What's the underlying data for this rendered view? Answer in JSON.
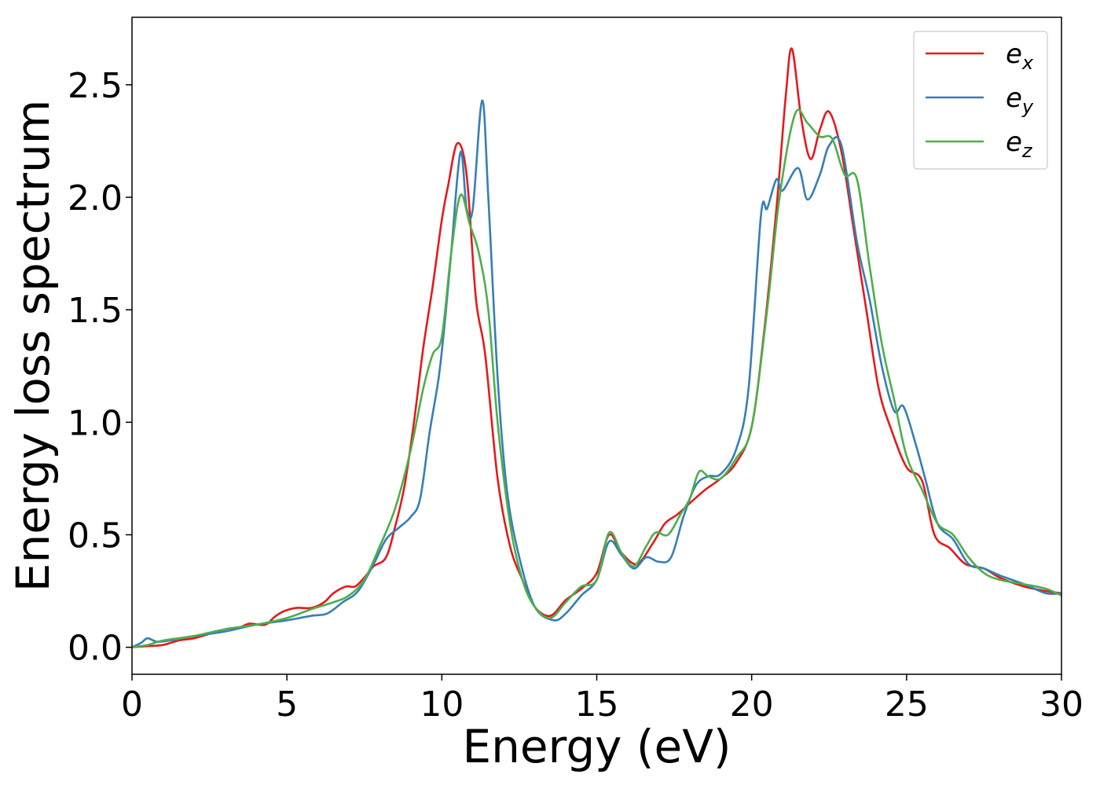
{
  "chart_data": {
    "type": "line",
    "title": "",
    "xlabel": "Energy (eV)",
    "ylabel": "Energy loss spectrum",
    "xlim": [
      0,
      30
    ],
    "ylim": [
      -0.12,
      2.8
    ],
    "grid": false,
    "legend_position": "top-right",
    "xticks": [
      0,
      5,
      10,
      15,
      20,
      25,
      30
    ],
    "xtick_labels": [
      "0",
      "5",
      "10",
      "15",
      "20",
      "25",
      "30"
    ],
    "yticks": [
      0.0,
      0.5,
      1.0,
      1.5,
      2.0,
      2.5
    ],
    "ytick_labels": [
      "0.0",
      "0.5",
      "1.0",
      "1.5",
      "2.0",
      "2.5"
    ],
    "series": [
      {
        "name": "e_x",
        "label_main": "e",
        "label_sub": "x",
        "color": "#e41a1c",
        "points": [
          [
            0,
            0.0
          ],
          [
            0.5,
            0.005
          ],
          [
            1,
            0.01
          ],
          [
            1.5,
            0.03
          ],
          [
            2,
            0.04
          ],
          [
            2.5,
            0.06
          ],
          [
            3,
            0.08
          ],
          [
            3.5,
            0.09
          ],
          [
            3.8,
            0.105
          ],
          [
            4.3,
            0.1
          ],
          [
            4.6,
            0.135
          ],
          [
            4.9,
            0.16
          ],
          [
            5.3,
            0.175
          ],
          [
            5.8,
            0.175
          ],
          [
            6.2,
            0.2
          ],
          [
            6.5,
            0.24
          ],
          [
            6.9,
            0.27
          ],
          [
            7.2,
            0.27
          ],
          [
            7.5,
            0.31
          ],
          [
            7.8,
            0.36
          ],
          [
            8.2,
            0.4
          ],
          [
            8.5,
            0.54
          ],
          [
            8.8,
            0.72
          ],
          [
            9.1,
            1.0
          ],
          [
            9.4,
            1.33
          ],
          [
            9.7,
            1.6
          ],
          [
            10.0,
            1.9
          ],
          [
            10.2,
            2.05
          ],
          [
            10.5,
            2.24
          ],
          [
            10.8,
            2.1
          ],
          [
            11.1,
            1.55
          ],
          [
            11.4,
            1.3
          ],
          [
            11.8,
            0.75
          ],
          [
            12.2,
            0.45
          ],
          [
            12.6,
            0.3
          ],
          [
            13.0,
            0.18
          ],
          [
            13.5,
            0.14
          ],
          [
            14.0,
            0.21
          ],
          [
            14.5,
            0.26
          ],
          [
            15.0,
            0.33
          ],
          [
            15.4,
            0.5
          ],
          [
            15.8,
            0.42
          ],
          [
            16.3,
            0.37
          ],
          [
            16.8,
            0.46
          ],
          [
            17.2,
            0.55
          ],
          [
            17.6,
            0.59
          ],
          [
            18.0,
            0.64
          ],
          [
            18.5,
            0.7
          ],
          [
            19.0,
            0.75
          ],
          [
            19.5,
            0.82
          ],
          [
            20.0,
            0.98
          ],
          [
            20.4,
            1.4
          ],
          [
            20.8,
            1.95
          ],
          [
            21.1,
            2.45
          ],
          [
            21.3,
            2.66
          ],
          [
            21.6,
            2.35
          ],
          [
            21.9,
            2.17
          ],
          [
            22.2,
            2.3
          ],
          [
            22.5,
            2.38
          ],
          [
            22.9,
            2.2
          ],
          [
            23.3,
            1.85
          ],
          [
            23.7,
            1.5
          ],
          [
            24.1,
            1.15
          ],
          [
            24.5,
            0.97
          ],
          [
            25.0,
            0.8
          ],
          [
            25.5,
            0.74
          ],
          [
            25.9,
            0.5
          ],
          [
            26.4,
            0.44
          ],
          [
            26.9,
            0.37
          ],
          [
            27.5,
            0.35
          ],
          [
            28.0,
            0.31
          ],
          [
            28.8,
            0.27
          ],
          [
            29.5,
            0.25
          ],
          [
            30,
            0.24
          ]
        ]
      },
      {
        "name": "e_y",
        "label_main": "e",
        "label_sub": "y",
        "color": "#377eb8",
        "points": [
          [
            0,
            0.0
          ],
          [
            0.3,
            0.02
          ],
          [
            0.5,
            0.04
          ],
          [
            0.8,
            0.025
          ],
          [
            1.2,
            0.03
          ],
          [
            2,
            0.05
          ],
          [
            3,
            0.07
          ],
          [
            4,
            0.1
          ],
          [
            5,
            0.12
          ],
          [
            5.8,
            0.14
          ],
          [
            6.3,
            0.15
          ],
          [
            6.8,
            0.2
          ],
          [
            7.3,
            0.25
          ],
          [
            7.8,
            0.37
          ],
          [
            8.2,
            0.48
          ],
          [
            8.6,
            0.53
          ],
          [
            9.0,
            0.58
          ],
          [
            9.3,
            0.66
          ],
          [
            9.6,
            0.95
          ],
          [
            9.9,
            1.2
          ],
          [
            10.1,
            1.45
          ],
          [
            10.3,
            1.75
          ],
          [
            10.6,
            2.2
          ],
          [
            10.8,
            1.95
          ],
          [
            11.0,
            1.95
          ],
          [
            11.3,
            2.43
          ],
          [
            11.5,
            2.0
          ],
          [
            11.8,
            1.2
          ],
          [
            12.1,
            0.7
          ],
          [
            12.5,
            0.4
          ],
          [
            13.0,
            0.18
          ],
          [
            13.6,
            0.12
          ],
          [
            14.0,
            0.15
          ],
          [
            14.5,
            0.23
          ],
          [
            15.0,
            0.3
          ],
          [
            15.4,
            0.47
          ],
          [
            15.8,
            0.41
          ],
          [
            16.2,
            0.35
          ],
          [
            16.6,
            0.4
          ],
          [
            17.0,
            0.38
          ],
          [
            17.4,
            0.4
          ],
          [
            17.8,
            0.58
          ],
          [
            18.2,
            0.72
          ],
          [
            18.6,
            0.76
          ],
          [
            19.0,
            0.77
          ],
          [
            19.5,
            0.88
          ],
          [
            19.9,
            1.15
          ],
          [
            20.3,
            1.92
          ],
          [
            20.5,
            1.95
          ],
          [
            20.8,
            2.08
          ],
          [
            21.0,
            2.03
          ],
          [
            21.5,
            2.13
          ],
          [
            21.8,
            1.99
          ],
          [
            22.2,
            2.1
          ],
          [
            22.5,
            2.23
          ],
          [
            22.9,
            2.23
          ],
          [
            23.4,
            1.8
          ],
          [
            23.8,
            1.55
          ],
          [
            24.2,
            1.25
          ],
          [
            24.6,
            1.05
          ],
          [
            24.9,
            1.07
          ],
          [
            25.3,
            0.9
          ],
          [
            25.6,
            0.75
          ],
          [
            26.0,
            0.55
          ],
          [
            26.5,
            0.48
          ],
          [
            27.0,
            0.37
          ],
          [
            27.5,
            0.35
          ],
          [
            28.0,
            0.32
          ],
          [
            28.8,
            0.28
          ],
          [
            29.5,
            0.24
          ],
          [
            30,
            0.24
          ]
        ]
      },
      {
        "name": "e_z",
        "label_main": "e",
        "label_sub": "z",
        "color": "#4daf4a",
        "points": [
          [
            0,
            0.0
          ],
          [
            0.5,
            0.01
          ],
          [
            1,
            0.03
          ],
          [
            2,
            0.05
          ],
          [
            3,
            0.08
          ],
          [
            4,
            0.1
          ],
          [
            5,
            0.13
          ],
          [
            5.8,
            0.17
          ],
          [
            6.5,
            0.2
          ],
          [
            7.0,
            0.23
          ],
          [
            7.5,
            0.3
          ],
          [
            8.0,
            0.45
          ],
          [
            8.5,
            0.62
          ],
          [
            9.0,
            0.88
          ],
          [
            9.4,
            1.15
          ],
          [
            9.7,
            1.3
          ],
          [
            10.0,
            1.38
          ],
          [
            10.3,
            1.75
          ],
          [
            10.6,
            2.01
          ],
          [
            10.9,
            1.88
          ],
          [
            11.2,
            1.75
          ],
          [
            11.5,
            1.5
          ],
          [
            11.8,
            1.0
          ],
          [
            12.2,
            0.55
          ],
          [
            12.6,
            0.3
          ],
          [
            13.0,
            0.18
          ],
          [
            13.5,
            0.13
          ],
          [
            14.0,
            0.2
          ],
          [
            14.5,
            0.27
          ],
          [
            15.0,
            0.3
          ],
          [
            15.4,
            0.51
          ],
          [
            15.8,
            0.42
          ],
          [
            16.2,
            0.36
          ],
          [
            16.6,
            0.45
          ],
          [
            16.9,
            0.51
          ],
          [
            17.3,
            0.5
          ],
          [
            17.7,
            0.59
          ],
          [
            18.0,
            0.66
          ],
          [
            18.3,
            0.78
          ],
          [
            18.6,
            0.76
          ],
          [
            19.0,
            0.75
          ],
          [
            19.5,
            0.84
          ],
          [
            20.0,
            0.98
          ],
          [
            20.5,
            1.5
          ],
          [
            20.9,
            2.0
          ],
          [
            21.4,
            2.37
          ],
          [
            21.8,
            2.33
          ],
          [
            22.2,
            2.27
          ],
          [
            22.6,
            2.26
          ],
          [
            23.0,
            2.1
          ],
          [
            23.4,
            2.08
          ],
          [
            23.8,
            1.7
          ],
          [
            24.2,
            1.35
          ],
          [
            24.6,
            1.1
          ],
          [
            25.0,
            0.85
          ],
          [
            25.5,
            0.7
          ],
          [
            26.0,
            0.55
          ],
          [
            26.5,
            0.5
          ],
          [
            27.0,
            0.4
          ],
          [
            27.5,
            0.33
          ],
          [
            28.0,
            0.3
          ],
          [
            28.8,
            0.28
          ],
          [
            29.5,
            0.26
          ],
          [
            30,
            0.23
          ]
        ]
      }
    ]
  }
}
